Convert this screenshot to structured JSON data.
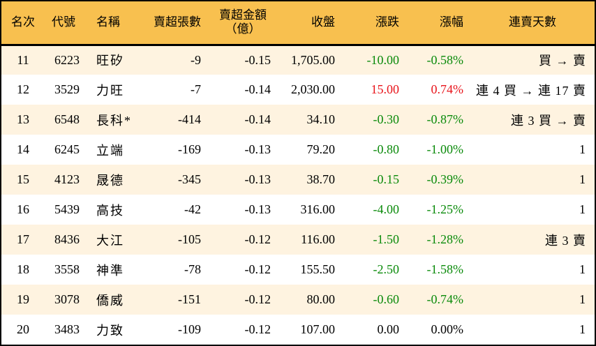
{
  "colors": {
    "header_bg": "#F8C04F",
    "row_odd_bg": "#FEF3E0",
    "row_even_bg": "#FFFFFF",
    "down": "#0A8A0A",
    "up": "#E8141B"
  },
  "header": {
    "rank": "名次",
    "code": "代號",
    "name": "名稱",
    "net_sell_lots": "賣超張數",
    "net_sell_amount_line1": "賣超金額",
    "net_sell_amount_line2": "（億）",
    "close": "收盤",
    "change": "漲跌",
    "change_pct": "漲幅",
    "sell_streak": "連賣天數"
  },
  "rows": [
    {
      "rank": "11",
      "code": "6223",
      "name": "旺矽",
      "lots": "-9",
      "amount": "-0.15",
      "close": "1,705.00",
      "change": "-10.00",
      "pct": "-0.58%",
      "dir": "down",
      "streak": "買 → 賣"
    },
    {
      "rank": "12",
      "code": "3529",
      "name": "力旺",
      "lots": "-7",
      "amount": "-0.14",
      "close": "2,030.00",
      "change": "15.00",
      "pct": "0.74%",
      "dir": "up",
      "streak": "連 4 買 → 連 17 賣"
    },
    {
      "rank": "13",
      "code": "6548",
      "name": "長科*",
      "lots": "-414",
      "amount": "-0.14",
      "close": "34.10",
      "change": "-0.30",
      "pct": "-0.87%",
      "dir": "down",
      "streak": "連 3 買 → 賣"
    },
    {
      "rank": "14",
      "code": "6245",
      "name": "立端",
      "lots": "-169",
      "amount": "-0.13",
      "close": "79.20",
      "change": "-0.80",
      "pct": "-1.00%",
      "dir": "down",
      "streak": "1"
    },
    {
      "rank": "15",
      "code": "4123",
      "name": "晟德",
      "lots": "-345",
      "amount": "-0.13",
      "close": "38.70",
      "change": "-0.15",
      "pct": "-0.39%",
      "dir": "down",
      "streak": "1"
    },
    {
      "rank": "16",
      "code": "5439",
      "name": "高技",
      "lots": "-42",
      "amount": "-0.13",
      "close": "316.00",
      "change": "-4.00",
      "pct": "-1.25%",
      "dir": "down",
      "streak": "1"
    },
    {
      "rank": "17",
      "code": "8436",
      "name": "大江",
      "lots": "-105",
      "amount": "-0.12",
      "close": "116.00",
      "change": "-1.50",
      "pct": "-1.28%",
      "dir": "down",
      "streak": "連 3 賣"
    },
    {
      "rank": "18",
      "code": "3558",
      "name": "神準",
      "lots": "-78",
      "amount": "-0.12",
      "close": "155.50",
      "change": "-2.50",
      "pct": "-1.58%",
      "dir": "down",
      "streak": "1"
    },
    {
      "rank": "19",
      "code": "3078",
      "name": "僑威",
      "lots": "-151",
      "amount": "-0.12",
      "close": "80.00",
      "change": "-0.60",
      "pct": "-0.74%",
      "dir": "down",
      "streak": "1"
    },
    {
      "rank": "20",
      "code": "3483",
      "name": "力致",
      "lots": "-109",
      "amount": "-0.12",
      "close": "107.00",
      "change": "0.00",
      "pct": "0.00%",
      "dir": "zero",
      "streak": "1"
    }
  ]
}
